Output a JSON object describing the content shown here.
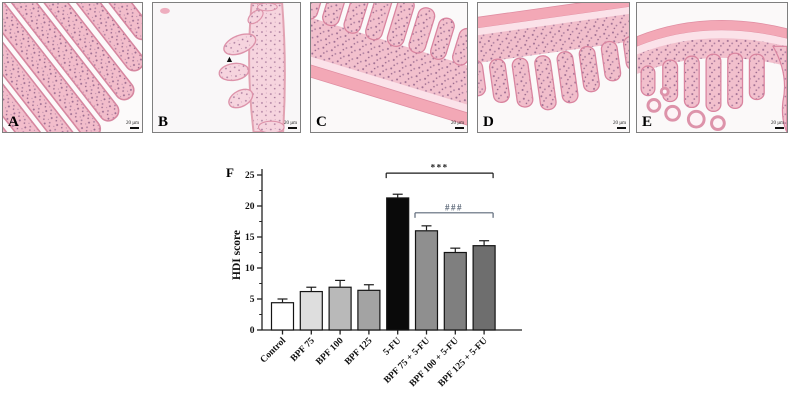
{
  "figure": {
    "panel_f_label": "F",
    "panels": [
      {
        "label": "A",
        "scale_text": "20 µm"
      },
      {
        "label": "B",
        "scale_text": "20 µm",
        "marker": "▲"
      },
      {
        "label": "C",
        "scale_text": "20 µm"
      },
      {
        "label": "D",
        "scale_text": "20 µm"
      },
      {
        "label": "E",
        "scale_text": "20 µm"
      }
    ],
    "histology_palette": {
      "tissue_pink": "#f2bdcb",
      "tissue_edge": "#d687a0",
      "muscle_layer": "#f3a8b6",
      "nuclei_purple": "#9b6b90",
      "background": "#fcfafa"
    }
  },
  "chart_data": {
    "type": "bar",
    "title": "",
    "xlabel": "",
    "ylabel": "HDI score",
    "ylim": [
      0,
      25
    ],
    "yticks": [
      0,
      5,
      10,
      15,
      20,
      25
    ],
    "minor_tick_step": 2.5,
    "grid": false,
    "legend": false,
    "categories": [
      "Control",
      "BPF 75",
      "BPF 100",
      "BPF 125",
      "5-FU",
      "BPF 75 + 5-FU",
      "BPF 100 + 5-FU",
      "BPF 125 + 5-FU"
    ],
    "values": [
      4.4,
      6.2,
      6.9,
      6.4,
      21.3,
      16.0,
      12.5,
      13.6
    ],
    "errors": [
      0.6,
      0.7,
      1.1,
      0.9,
      0.6,
      0.8,
      0.7,
      0.8
    ],
    "bar_colors": [
      "#ffffff",
      "#dedede",
      "#b9b9b9",
      "#a3a3a3",
      "#0a0a0a",
      "#8f8f8f",
      "#7f7f7f",
      "#6e6e6e"
    ],
    "bar_border_color": "#141414",
    "significance": [
      {
        "text": "***",
        "color": "#1a1a1a",
        "from_category": "5-FU",
        "to_category": "BPF 125 + 5-FU",
        "y_value": 25.3
      },
      {
        "text": "###",
        "color": "#5c6878",
        "from_category": "BPF 75 + 5-FU",
        "to_category": "BPF 125 + 5-FU",
        "y_value": 18.9
      }
    ]
  }
}
